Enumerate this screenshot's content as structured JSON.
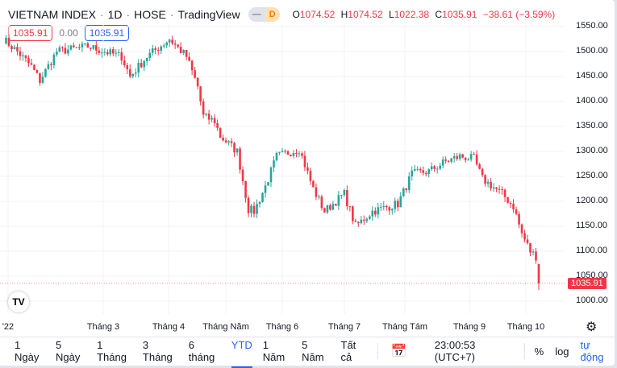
{
  "header": {
    "symbol": "VIETNAM INDEX",
    "interval": "1D",
    "exchange": "HOSE",
    "source": "TradingView",
    "badge_letter": "D",
    "ohlc": {
      "o_label": "O",
      "o": "1074.52",
      "h_label": "H",
      "h": "1074.52",
      "l_label": "L",
      "l": "1022.38",
      "c_label": "C",
      "c": "1035.91",
      "change": "−38.61 (−3.59%)"
    }
  },
  "pills": {
    "sell": "1035.91",
    "spread": "0.00",
    "buy": "1035.91"
  },
  "colors": {
    "up": "#26a69a",
    "down": "#f23645",
    "accent": "#2962ff"
  },
  "price_axis": [
    "1550.00",
    "1500.00",
    "1450.00",
    "1400.00",
    "1350.00",
    "1300.00",
    "1250.00",
    "1200.00",
    "1150.00",
    "1100.00",
    "1050.00",
    "1000.00"
  ],
  "current_price": "1035.91",
  "time_axis": [
    "'22",
    "Tháng 3",
    "Tháng 4",
    "Tháng Năm",
    "Tháng 6",
    "Tháng 7",
    "Tháng Tám",
    "Tháng 9",
    "Tháng 10"
  ],
  "chart_data": {
    "type": "candlestick",
    "ylim": [
      1000,
      1550
    ],
    "candles": 190,
    "price_path": [
      [
        0,
        1525
      ],
      [
        5,
        1500
      ],
      [
        10,
        1470
      ],
      [
        13,
        1442
      ],
      [
        19,
        1500
      ],
      [
        30,
        1510
      ],
      [
        42,
        1490
      ],
      [
        45,
        1450
      ],
      [
        51,
        1490
      ],
      [
        59,
        1525
      ],
      [
        65,
        1490
      ],
      [
        69,
        1430
      ],
      [
        71,
        1370
      ],
      [
        75,
        1361
      ],
      [
        77,
        1330
      ],
      [
        83,
        1300
      ],
      [
        87,
        1184
      ],
      [
        89,
        1180
      ],
      [
        93,
        1230
      ],
      [
        97,
        1290
      ],
      [
        105,
        1305
      ],
      [
        110,
        1225
      ],
      [
        114,
        1180
      ],
      [
        121,
        1215
      ],
      [
        125,
        1150
      ],
      [
        131,
        1180
      ],
      [
        140,
        1195
      ],
      [
        145,
        1255
      ],
      [
        151,
        1260
      ],
      [
        157,
        1280
      ],
      [
        162,
        1290
      ],
      [
        167,
        1285
      ],
      [
        170,
        1245
      ],
      [
        177,
        1215
      ],
      [
        181,
        1190
      ],
      [
        184,
        1135
      ],
      [
        187,
        1100
      ],
      [
        189,
        1090
      ],
      [
        190,
        1036
      ]
    ]
  },
  "bottom": {
    "ranges": [
      "1 Ngày",
      "5 Ngày",
      "1 Tháng",
      "3 Tháng",
      "6 tháng",
      "YTD",
      "1 Năm",
      "5 Năm",
      "Tất cả"
    ],
    "active": "YTD",
    "time": "23:00:53 (UTC+7)",
    "percent": "%",
    "log": "log",
    "auto": "tự động"
  }
}
